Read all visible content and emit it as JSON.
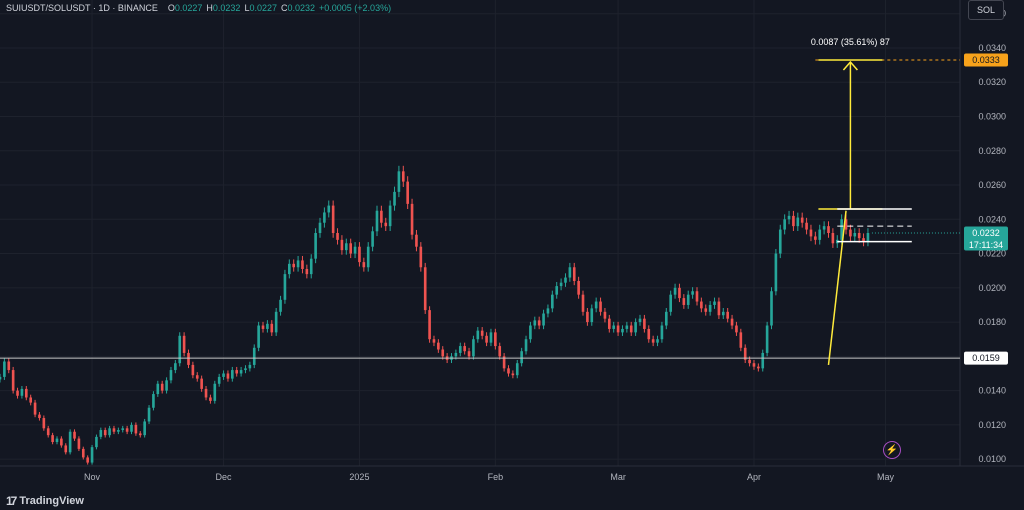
{
  "header": {
    "symbol": "SUIUSDT/SOLUSDT · 1D · BINANCE",
    "ohlc": [
      {
        "k": "O",
        "v": "0.0227"
      },
      {
        "k": "H",
        "v": "0.0232"
      },
      {
        "k": "L",
        "v": "0.0227"
      },
      {
        "k": "C",
        "v": "0.0232"
      },
      {
        "k": "",
        "v": "+0.0005 (+2.03%)"
      }
    ]
  },
  "symbol_button": "SOL",
  "footer": {
    "brand": "TradingView"
  },
  "colors": {
    "up": "#26a69a",
    "down": "#ef5350",
    "background": "#131722",
    "grid": "#1e222d",
    "drawing": "#ffeb3b",
    "target": "#f7a21b",
    "text": "#b2b5be"
  },
  "chart_data": {
    "type": "candlestick",
    "ylim": [
      0.0096,
      0.0368
    ],
    "y_ticks": [
      "0.0360",
      "0.0340",
      "0.0320",
      "0.0300",
      "0.0280",
      "0.0260",
      "0.0240",
      "0.0220",
      "0.0200",
      "0.0180",
      "0.0160",
      "0.0140",
      "0.0120",
      "0.0100"
    ],
    "x_ticks": [
      {
        "label": "Nov",
        "day": 0
      },
      {
        "label": "Dec",
        "day": 30
      },
      {
        "label": "2025",
        "day": 61
      },
      {
        "label": "Feb",
        "day": 92
      },
      {
        "label": "Mar",
        "day": 120
      },
      {
        "label": "Apr",
        "day": 151
      },
      {
        "label": "May",
        "day": 181
      }
    ],
    "day_range": [
      -21,
      198
    ],
    "price_labels": {
      "last": {
        "value": 0.0232,
        "text": "0.0232",
        "countdown": "17:11:34"
      },
      "support": {
        "value": 0.0159,
        "text": "0.0159"
      },
      "target": {
        "value": 0.0333,
        "text": "0.0333"
      }
    },
    "measure": {
      "text": "0.0087 (35.61%) 87",
      "from": 0.0246,
      "to": 0.0333,
      "day": 173
    },
    "support_line": 0.0159,
    "target_line": {
      "value": 0.0333,
      "start_day": 165
    },
    "flag": {
      "start_day": 170,
      "end_day": 187,
      "upper": 0.0246,
      "lower": 0.0227,
      "mid": 0.0236
    },
    "pole": {
      "from_day": 168,
      "from": 0.0155,
      "to_day": 172,
      "to": 0.0245
    },
    "closes": [
      0.0148,
      0.0157,
      0.0152,
      0.014,
      0.0137,
      0.0141,
      0.0136,
      0.0133,
      0.0126,
      0.0124,
      0.0118,
      0.0114,
      0.011,
      0.0112,
      0.0108,
      0.0104,
      0.0116,
      0.0112,
      0.0106,
      0.0101,
      0.0098,
      0.0107,
      0.0113,
      0.0117,
      0.0114,
      0.0118,
      0.0116,
      0.0117,
      0.0118,
      0.0116,
      0.012,
      0.0115,
      0.0114,
      0.0122,
      0.013,
      0.0138,
      0.0144,
      0.014,
      0.0146,
      0.0152,
      0.0156,
      0.0172,
      0.0162,
      0.0155,
      0.0149,
      0.0147,
      0.0141,
      0.0136,
      0.0134,
      0.0144,
      0.0148,
      0.015,
      0.0147,
      0.0152,
      0.015,
      0.0152,
      0.0153,
      0.0155,
      0.0165,
      0.0178,
      0.0176,
      0.0179,
      0.0174,
      0.0186,
      0.0193,
      0.0208,
      0.0214,
      0.0212,
      0.0216,
      0.0211,
      0.0208,
      0.0217,
      0.0232,
      0.0238,
      0.0244,
      0.0248,
      0.0232,
      0.0228,
      0.0222,
      0.0226,
      0.022,
      0.0224,
      0.0215,
      0.0212,
      0.0224,
      0.0233,
      0.0245,
      0.0238,
      0.0236,
      0.0248,
      0.0256,
      0.0268,
      0.0262,
      0.0249,
      0.0231,
      0.0224,
      0.0212,
      0.0187,
      0.017,
      0.0168,
      0.0164,
      0.016,
      0.0158,
      0.016,
      0.0162,
      0.0166,
      0.0163,
      0.016,
      0.017,
      0.0175,
      0.0172,
      0.0168,
      0.0174,
      0.0166,
      0.016,
      0.0153,
      0.015,
      0.0149,
      0.0156,
      0.0163,
      0.017,
      0.0178,
      0.0181,
      0.0178,
      0.0185,
      0.0188,
      0.0196,
      0.0201,
      0.0203,
      0.0206,
      0.0212,
      0.0204,
      0.0196,
      0.0186,
      0.018,
      0.0188,
      0.0192,
      0.0186,
      0.0182,
      0.0176,
      0.0178,
      0.0174,
      0.0176,
      0.0178,
      0.0174,
      0.018,
      0.0182,
      0.0176,
      0.017,
      0.0168,
      0.017,
      0.0178,
      0.0186,
      0.0196,
      0.02,
      0.0194,
      0.019,
      0.0196,
      0.0198,
      0.0192,
      0.0188,
      0.0186,
      0.019,
      0.0192,
      0.0184,
      0.0186,
      0.0182,
      0.0178,
      0.0174,
      0.0165,
      0.0158,
      0.0156,
      0.0154,
      0.0153,
      0.0162,
      0.0178,
      0.0198,
      0.022,
      0.0234,
      0.024,
      0.0242,
      0.0236,
      0.0241,
      0.0238,
      0.0234,
      0.023,
      0.0228,
      0.0234,
      0.0236,
      0.0232,
      0.0226,
      0.0228,
      0.024,
      0.0234,
      0.023,
      0.0232,
      0.0229,
      0.0227,
      0.0232
    ]
  }
}
